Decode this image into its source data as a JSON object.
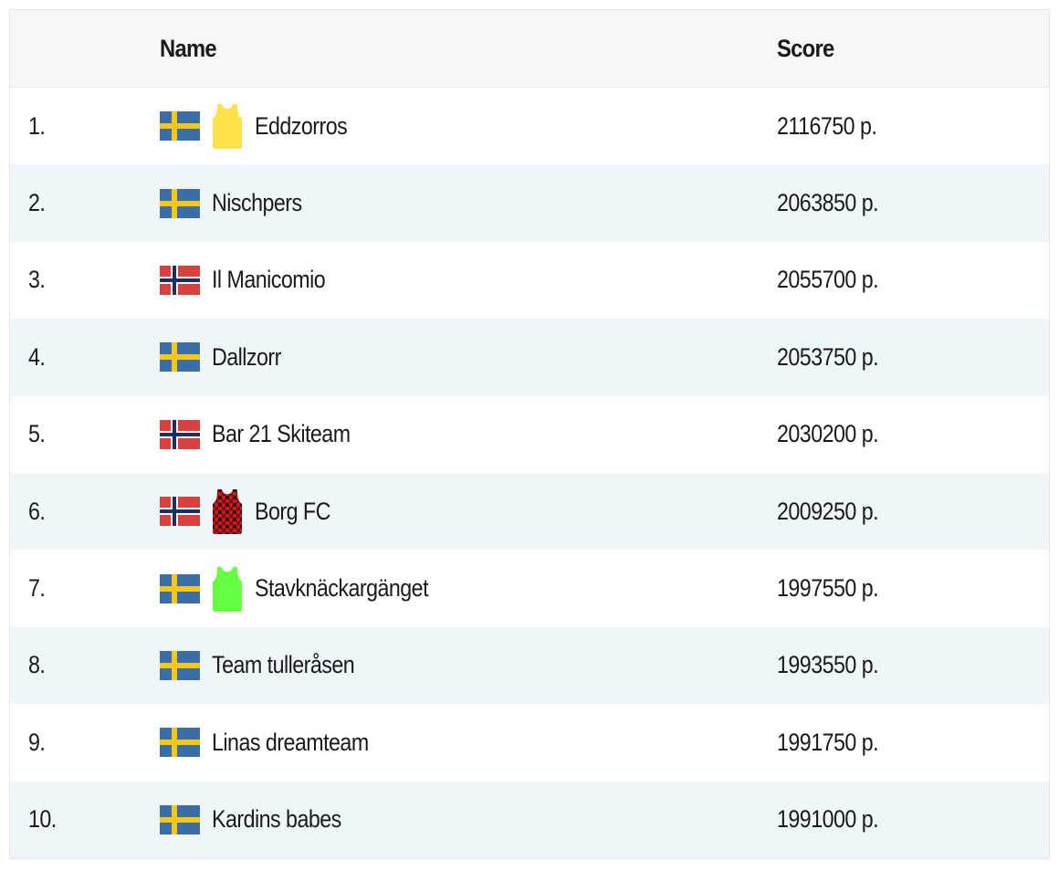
{
  "header": {
    "name_label": "Name",
    "score_label": "Score"
  },
  "colors": {
    "header_bg": "#f7f7f7",
    "alt_row_bg": "#eef6f9",
    "sweden_blue": "#3a6ea5",
    "sweden_yellow": "#f5c71a",
    "norway_red": "#d9413f",
    "norway_blue": "#1c2f5e",
    "jersey_yellow": "#ffe14a",
    "jersey_green": "#66ff44",
    "jersey_plaid_red": "#c8191e"
  },
  "rows": [
    {
      "rank": "1.",
      "name": "Eddzorros",
      "score": "2116750 p.",
      "flag": "sweden-flag-icon",
      "jersey": "yellow-jersey-icon"
    },
    {
      "rank": "2.",
      "name": "Nischpers",
      "score": "2063850 p.",
      "flag": "sweden-flag-icon",
      "jersey": null
    },
    {
      "rank": "3.",
      "name": "Il Manicomio",
      "score": "2055700 p.",
      "flag": "norway-flag-icon",
      "jersey": null
    },
    {
      "rank": "4.",
      "name": "Dallzorr",
      "score": "2053750 p.",
      "flag": "sweden-flag-icon",
      "jersey": null
    },
    {
      "rank": "5.",
      "name": "Bar 21 Skiteam",
      "score": "2030200 p.",
      "flag": "norway-flag-icon",
      "jersey": null
    },
    {
      "rank": "6.",
      "name": "Borg FC",
      "score": "2009250 p.",
      "flag": "norway-flag-icon",
      "jersey": "plaid-jersey-icon"
    },
    {
      "rank": "7.",
      "name": "Stavknäckargänget",
      "score": "1997550 p.",
      "flag": "sweden-flag-icon",
      "jersey": "green-jersey-icon"
    },
    {
      "rank": "8.",
      "name": "Team tulleråsen",
      "score": "1993550 p.",
      "flag": "sweden-flag-icon",
      "jersey": null
    },
    {
      "rank": "9.",
      "name": "Linas dreamteam",
      "score": "1991750 p.",
      "flag": "sweden-flag-icon",
      "jersey": null
    },
    {
      "rank": "10.",
      "name": "Kardins babes",
      "score": "1991000 p.",
      "flag": "sweden-flag-icon",
      "jersey": null
    }
  ]
}
